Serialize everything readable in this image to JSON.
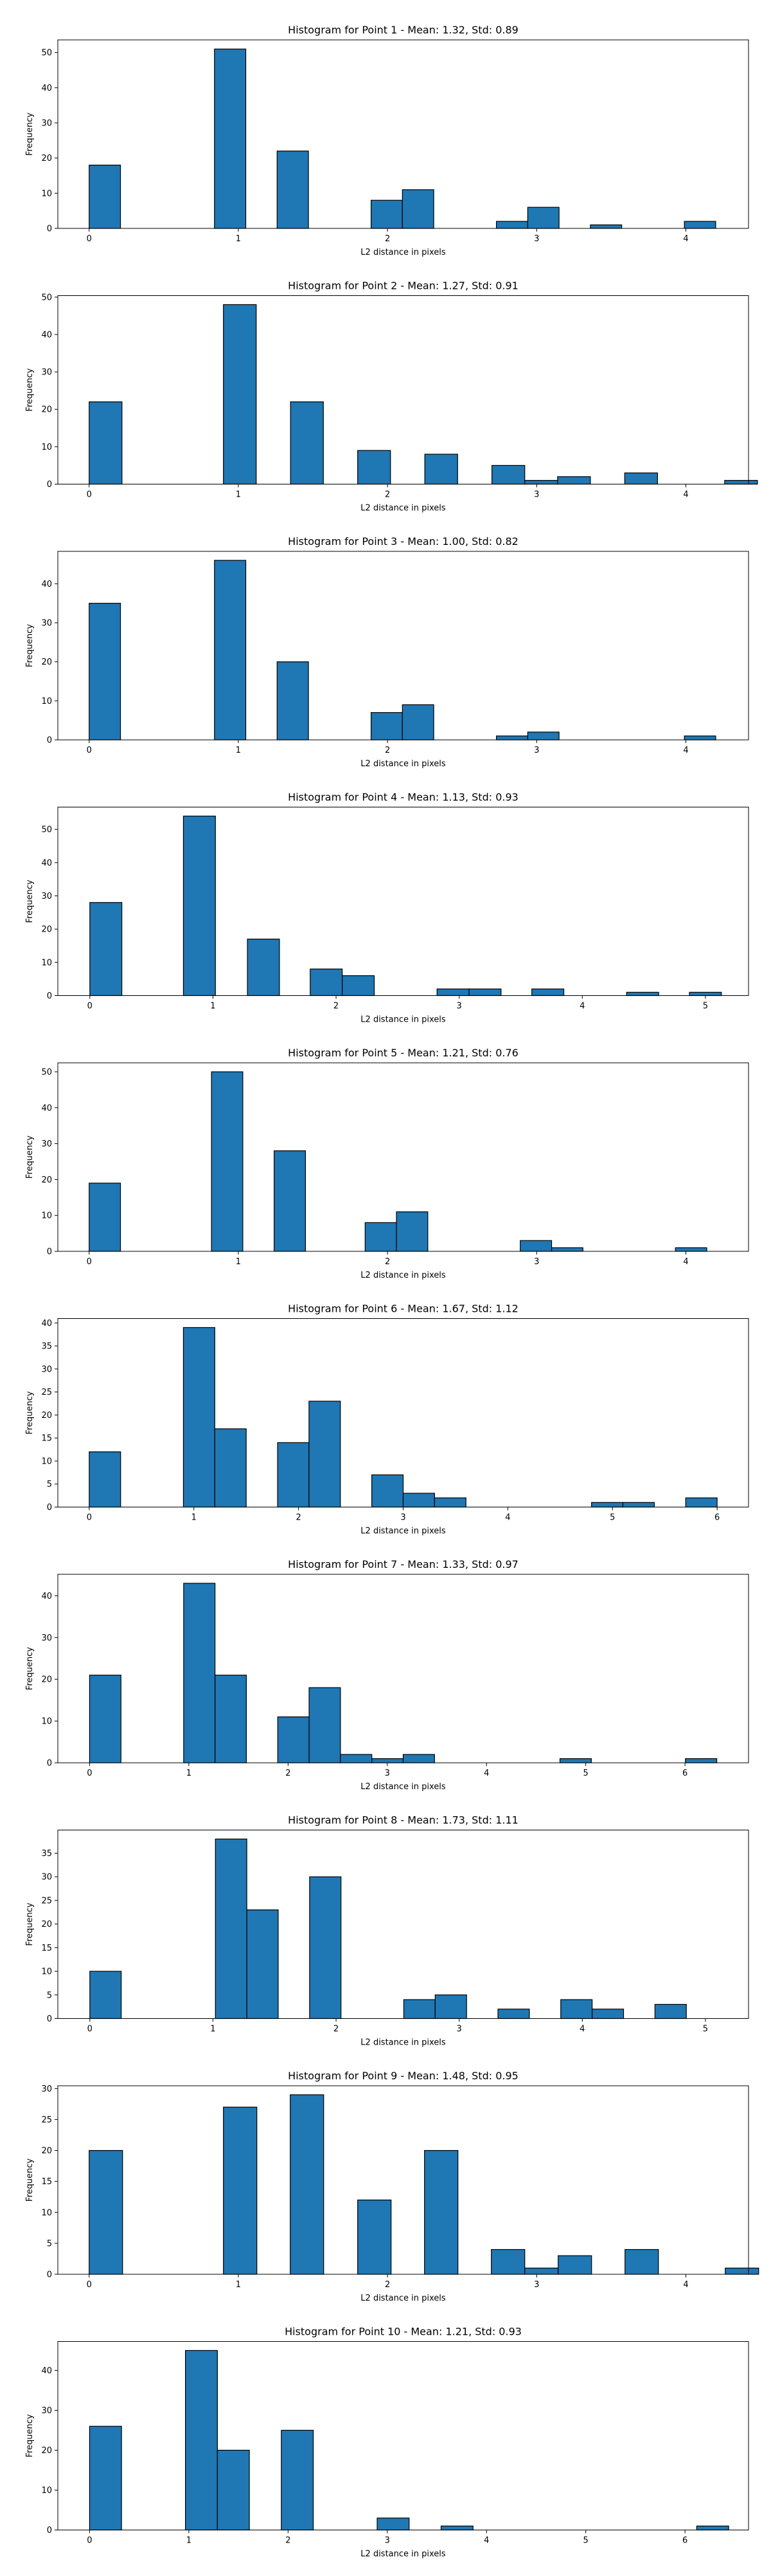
{
  "chart_data": [
    {
      "type": "bar",
      "title": "Histogram for Point 1 - Mean: 1.32, Std: 0.89",
      "xlabel": "L2 distance in pixels",
      "ylabel": "Frequency",
      "xlim": [
        -0.21,
        4.42
      ],
      "ylim": [
        0,
        53.6
      ],
      "xticks": [
        0,
        1,
        2,
        3,
        4
      ],
      "yticks": [
        0,
        10,
        20,
        30,
        40,
        50
      ],
      "bars": [
        {
          "x0": 0.0,
          "x1": 0.21,
          "value": 18
        },
        {
          "x0": 0.84,
          "x1": 1.05,
          "value": 51
        },
        {
          "x0": 1.26,
          "x1": 1.47,
          "value": 22
        },
        {
          "x0": 1.89,
          "x1": 2.1,
          "value": 8
        },
        {
          "x0": 2.1,
          "x1": 2.31,
          "value": 11
        },
        {
          "x0": 2.73,
          "x1": 2.94,
          "value": 2
        },
        {
          "x0": 2.94,
          "x1": 3.15,
          "value": 6
        },
        {
          "x0": 3.36,
          "x1": 3.57,
          "value": 1
        },
        {
          "x0": 3.99,
          "x1": 4.2,
          "value": 2
        }
      ]
    },
    {
      "type": "bar",
      "title": "Histogram for Point 2 - Mean: 1.27, Std: 0.91",
      "xlabel": "L2 distance in pixels",
      "ylabel": "Frequency",
      "xlim": [
        -0.21,
        4.42
      ],
      "ylim": [
        0,
        50.4
      ],
      "xticks": [
        0,
        1,
        2,
        3,
        4
      ],
      "yticks": [
        0,
        10,
        20,
        30,
        40,
        50
      ],
      "bars": [
        {
          "x0": 0.0,
          "x1": 0.22,
          "value": 22
        },
        {
          "x0": 0.9,
          "x1": 1.12,
          "value": 48
        },
        {
          "x0": 1.35,
          "x1": 1.57,
          "value": 22
        },
        {
          "x0": 1.8,
          "x1": 2.02,
          "value": 9
        },
        {
          "x0": 2.25,
          "x1": 2.47,
          "value": 8
        },
        {
          "x0": 2.7,
          "x1": 2.92,
          "value": 5
        },
        {
          "x0": 2.92,
          "x1": 3.14,
          "value": 1
        },
        {
          "x0": 3.14,
          "x1": 3.36,
          "value": 2
        },
        {
          "x0": 3.59,
          "x1": 3.81,
          "value": 3
        },
        {
          "x0": 4.26,
          "x1": 4.48,
          "value": 1
        }
      ]
    },
    {
      "type": "bar",
      "title": "Histogram for Point 3 - Mean: 1.00, Std: 0.82",
      "xlabel": "L2 distance in pixels",
      "ylabel": "Frequency",
      "xlim": [
        -0.21,
        4.42
      ],
      "ylim": [
        0,
        48.3
      ],
      "xticks": [
        0,
        1,
        2,
        3,
        4
      ],
      "yticks": [
        0,
        10,
        20,
        30,
        40
      ],
      "bars": [
        {
          "x0": 0.0,
          "x1": 0.21,
          "value": 35
        },
        {
          "x0": 0.84,
          "x1": 1.05,
          "value": 46
        },
        {
          "x0": 1.26,
          "x1": 1.47,
          "value": 20
        },
        {
          "x0": 1.89,
          "x1": 2.1,
          "value": 7
        },
        {
          "x0": 2.1,
          "x1": 2.31,
          "value": 9
        },
        {
          "x0": 2.73,
          "x1": 2.94,
          "value": 1
        },
        {
          "x0": 2.94,
          "x1": 3.15,
          "value": 2
        },
        {
          "x0": 3.99,
          "x1": 4.2,
          "value": 1
        }
      ]
    },
    {
      "type": "bar",
      "title": "Histogram for Point 4 - Mean: 1.13, Std: 0.93",
      "xlabel": "L2 distance in pixels",
      "ylabel": "Frequency",
      "xlim": [
        -0.26,
        5.35
      ],
      "ylim": [
        0,
        56.7
      ],
      "xticks": [
        0,
        1,
        2,
        3,
        4,
        5
      ],
      "yticks": [
        0,
        10,
        20,
        30,
        40,
        50
      ],
      "bars": [
        {
          "x0": 0.0,
          "x1": 0.26,
          "value": 28
        },
        {
          "x0": 0.76,
          "x1": 1.02,
          "value": 54
        },
        {
          "x0": 1.28,
          "x1": 1.54,
          "value": 17
        },
        {
          "x0": 1.79,
          "x1": 2.05,
          "value": 8
        },
        {
          "x0": 2.05,
          "x1": 2.31,
          "value": 6
        },
        {
          "x0": 2.82,
          "x1": 3.08,
          "value": 2
        },
        {
          "x0": 3.08,
          "x1": 3.34,
          "value": 2
        },
        {
          "x0": 3.59,
          "x1": 3.85,
          "value": 2
        },
        {
          "x0": 4.36,
          "x1": 4.62,
          "value": 1
        },
        {
          "x0": 4.87,
          "x1": 5.13,
          "value": 1
        }
      ]
    },
    {
      "type": "bar",
      "title": "Histogram for Point 5 - Mean: 1.21, Std: 0.76",
      "xlabel": "L2 distance in pixels",
      "ylabel": "Frequency",
      "xlim": [
        -0.21,
        4.42
      ],
      "ylim": [
        0,
        52.5
      ],
      "xticks": [
        0,
        1,
        2,
        3,
        4
      ],
      "yticks": [
        0,
        10,
        20,
        30,
        40,
        50
      ],
      "bars": [
        {
          "x0": 0.0,
          "x1": 0.21,
          "value": 19
        },
        {
          "x0": 0.82,
          "x1": 1.03,
          "value": 50
        },
        {
          "x0": 1.24,
          "x1": 1.45,
          "value": 28
        },
        {
          "x0": 1.85,
          "x1": 2.06,
          "value": 8
        },
        {
          "x0": 2.06,
          "x1": 2.27,
          "value": 11
        },
        {
          "x0": 2.89,
          "x1": 3.1,
          "value": 3
        },
        {
          "x0": 3.1,
          "x1": 3.31,
          "value": 1
        },
        {
          "x0": 3.93,
          "x1": 4.14,
          "value": 1
        }
      ]
    },
    {
      "type": "bar",
      "title": "Histogram for Point 6 - Mean: 1.67, Std: 1.12",
      "xlabel": "L2 distance in pixels",
      "ylabel": "Frequency",
      "xlim": [
        -0.3,
        6.3
      ],
      "ylim": [
        0,
        40.95
      ],
      "xticks": [
        0,
        1,
        2,
        3,
        4,
        5,
        6
      ],
      "yticks": [
        0,
        5,
        10,
        15,
        20,
        25,
        30,
        35,
        40
      ],
      "bars": [
        {
          "x0": 0.0,
          "x1": 0.3,
          "value": 12
        },
        {
          "x0": 0.9,
          "x1": 1.2,
          "value": 39
        },
        {
          "x0": 1.2,
          "x1": 1.5,
          "value": 17
        },
        {
          "x0": 1.8,
          "x1": 2.1,
          "value": 14
        },
        {
          "x0": 2.1,
          "x1": 2.4,
          "value": 23
        },
        {
          "x0": 2.7,
          "x1": 3.0,
          "value": 7
        },
        {
          "x0": 3.0,
          "x1": 3.3,
          "value": 3
        },
        {
          "x0": 3.3,
          "x1": 3.6,
          "value": 2
        },
        {
          "x0": 4.8,
          "x1": 5.1,
          "value": 1
        },
        {
          "x0": 5.1,
          "x1": 5.4,
          "value": 1
        },
        {
          "x0": 5.7,
          "x1": 6.0,
          "value": 2
        }
      ]
    },
    {
      "type": "bar",
      "title": "Histogram for Point 7 - Mean: 1.33, Std: 0.97",
      "xlabel": "L2 distance in pixels",
      "ylabel": "Frequency",
      "xlim": [
        -0.32,
        6.64
      ],
      "ylim": [
        0,
        45.15
      ],
      "xticks": [
        0,
        1,
        2,
        3,
        4,
        5,
        6
      ],
      "yticks": [
        0,
        10,
        20,
        30,
        40
      ],
      "bars": [
        {
          "x0": 0.0,
          "x1": 0.316,
          "value": 21
        },
        {
          "x0": 0.948,
          "x1": 1.264,
          "value": 43
        },
        {
          "x0": 1.264,
          "x1": 1.58,
          "value": 21
        },
        {
          "x0": 1.896,
          "x1": 2.212,
          "value": 11
        },
        {
          "x0": 2.212,
          "x1": 2.528,
          "value": 18
        },
        {
          "x0": 2.528,
          "x1": 2.844,
          "value": 2
        },
        {
          "x0": 2.844,
          "x1": 3.16,
          "value": 1
        },
        {
          "x0": 3.16,
          "x1": 3.476,
          "value": 2
        },
        {
          "x0": 4.74,
          "x1": 5.056,
          "value": 1
        },
        {
          "x0": 6.004,
          "x1": 6.32,
          "value": 1
        }
      ]
    },
    {
      "type": "bar",
      "title": "Histogram for Point 8 - Mean: 1.73, Std: 1.11",
      "xlabel": "L2 distance in pixels",
      "ylabel": "Frequency",
      "xlim": [
        -0.26,
        5.35
      ],
      "ylim": [
        0,
        39.9
      ],
      "xticks": [
        0,
        1,
        2,
        3,
        4,
        5
      ],
      "yticks": [
        0,
        5,
        10,
        15,
        20,
        25,
        30,
        35
      ],
      "bars": [
        {
          "x0": 0.0,
          "x1": 0.255,
          "value": 10
        },
        {
          "x0": 1.02,
          "x1": 1.275,
          "value": 38
        },
        {
          "x0": 1.275,
          "x1": 1.53,
          "value": 23
        },
        {
          "x0": 1.785,
          "x1": 2.04,
          "value": 30
        },
        {
          "x0": 2.55,
          "x1": 2.805,
          "value": 4
        },
        {
          "x0": 2.805,
          "x1": 3.06,
          "value": 5
        },
        {
          "x0": 3.315,
          "x1": 3.57,
          "value": 2
        },
        {
          "x0": 3.825,
          "x1": 4.08,
          "value": 4
        },
        {
          "x0": 4.08,
          "x1": 4.335,
          "value": 2
        },
        {
          "x0": 4.59,
          "x1": 4.845,
          "value": 3
        }
      ]
    },
    {
      "type": "bar",
      "title": "Histogram for Point 9 - Mean: 1.48, Std: 0.95",
      "xlabel": "L2 distance in pixels",
      "ylabel": "Frequency",
      "xlim": [
        -0.21,
        4.42
      ],
      "ylim": [
        0,
        30.45
      ],
      "xticks": [
        0,
        1,
        2,
        3,
        4
      ],
      "yticks": [
        0,
        5,
        10,
        15,
        20,
        25,
        30
      ],
      "bars": [
        {
          "x0": 0.0,
          "x1": 0.224,
          "value": 20
        },
        {
          "x0": 0.9,
          "x1": 1.124,
          "value": 27
        },
        {
          "x0": 1.348,
          "x1": 1.572,
          "value": 29
        },
        {
          "x0": 1.8,
          "x1": 2.024,
          "value": 12
        },
        {
          "x0": 2.248,
          "x1": 2.472,
          "value": 20
        },
        {
          "x0": 2.696,
          "x1": 2.92,
          "value": 4
        },
        {
          "x0": 2.92,
          "x1": 3.144,
          "value": 1
        },
        {
          "x0": 3.144,
          "x1": 3.368,
          "value": 3
        },
        {
          "x0": 3.592,
          "x1": 3.816,
          "value": 4
        },
        {
          "x0": 4.264,
          "x1": 4.488,
          "value": 1
        }
      ]
    },
    {
      "type": "bar",
      "title": "Histogram for Point 10 - Mean: 1.21, Std: 0.93",
      "xlabel": "L2 distance in pixels",
      "ylabel": "Frequency",
      "xlim": [
        -0.32,
        6.64
      ],
      "ylim": [
        0,
        47.25
      ],
      "xticks": [
        0,
        1,
        2,
        3,
        4,
        5,
        6
      ],
      "yticks": [
        0,
        10,
        20,
        30,
        40
      ],
      "bars": [
        {
          "x0": 0.0,
          "x1": 0.322,
          "value": 26
        },
        {
          "x0": 0.966,
          "x1": 1.288,
          "value": 45
        },
        {
          "x0": 1.288,
          "x1": 1.61,
          "value": 20
        },
        {
          "x0": 1.932,
          "x1": 2.254,
          "value": 25
        },
        {
          "x0": 2.898,
          "x1": 3.22,
          "value": 3
        },
        {
          "x0": 3.542,
          "x1": 3.864,
          "value": 1
        },
        {
          "x0": 6.118,
          "x1": 6.44,
          "value": 1
        }
      ]
    }
  ]
}
